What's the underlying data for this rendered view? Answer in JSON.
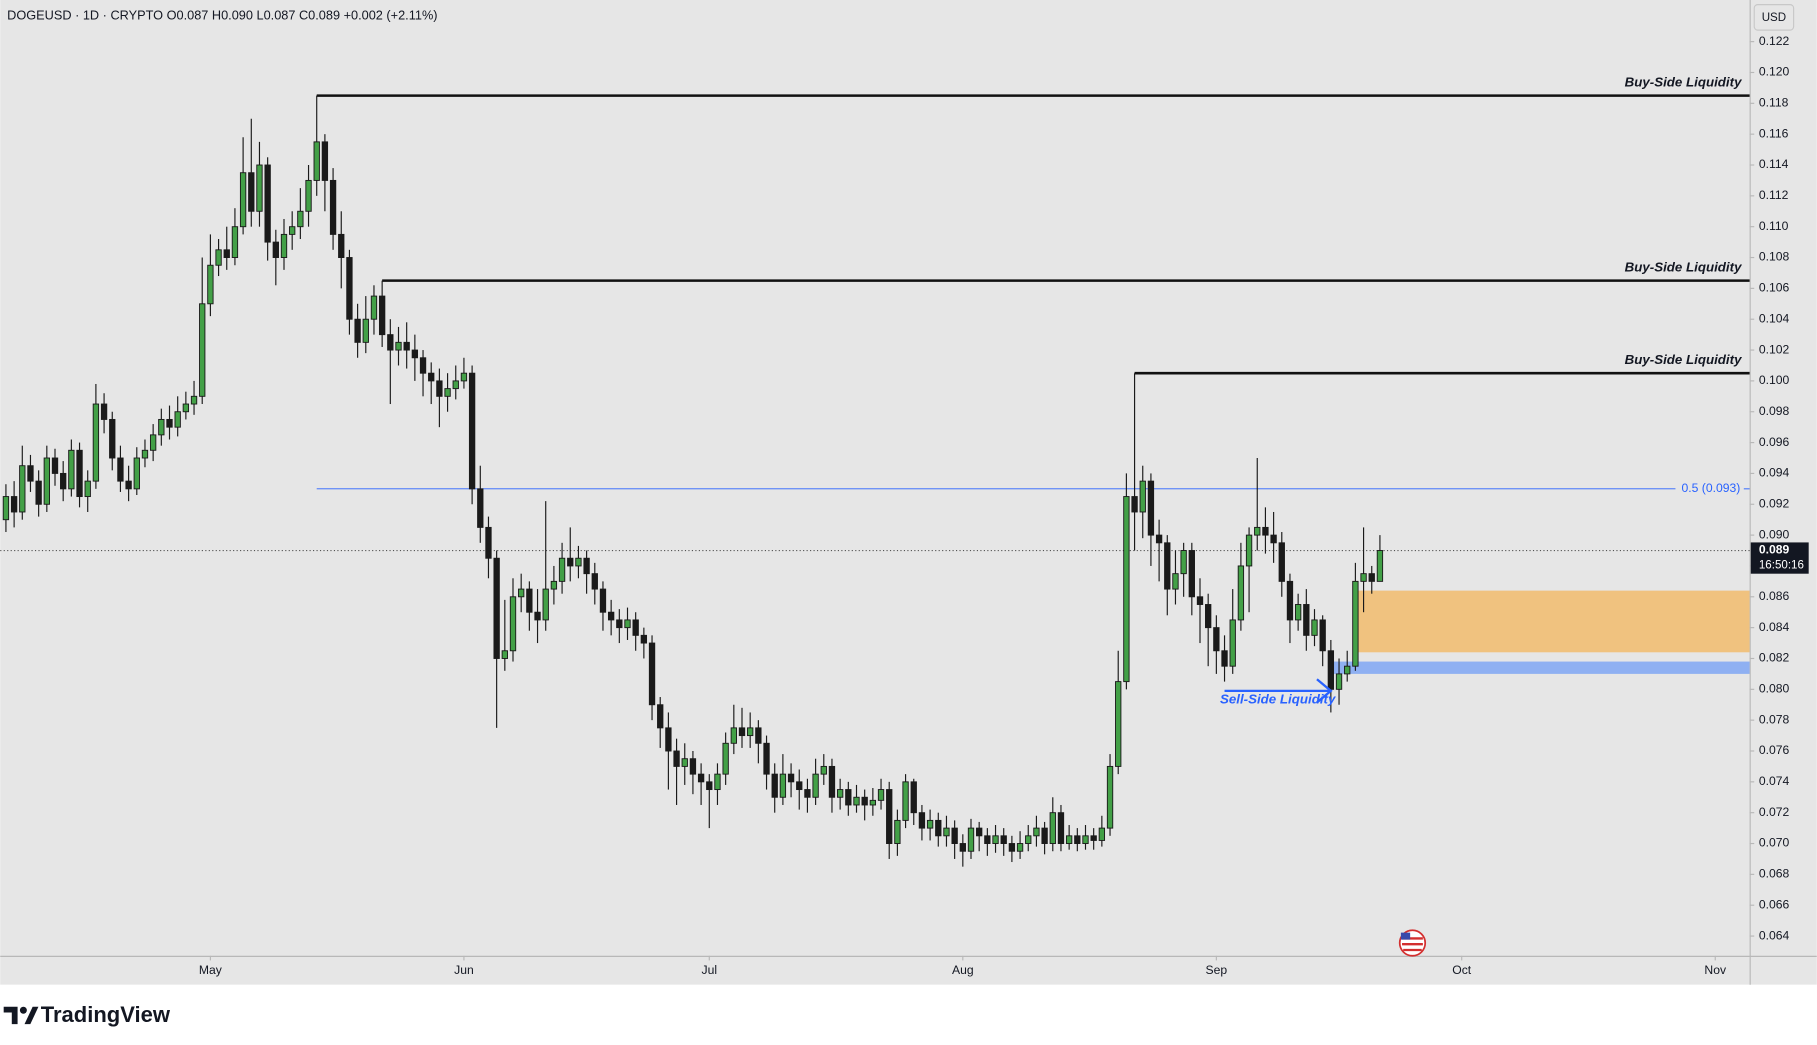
{
  "chart_data": {
    "type": "candlestick",
    "header": "DOGEUSD · 1D · CRYPTO  O0.087  H0.090  L0.087  C0.089  +0.002 (+2.11%)",
    "currency": "USD",
    "footer": "TradingView",
    "up_color": "#43a047",
    "down_color": "#1a1a1a",
    "wick_color": "#1a1a1a",
    "xlim": [
      -0.7,
      213.2
    ],
    "xticks": [
      {
        "value": 25,
        "label": "May"
      },
      {
        "value": 56,
        "label": "Jun"
      },
      {
        "value": 86,
        "label": "Jul"
      },
      {
        "value": 117,
        "label": "Aug"
      },
      {
        "value": 148,
        "label": "Sep"
      },
      {
        "value": 178,
        "label": "Oct"
      },
      {
        "value": 209,
        "label": "Nov"
      }
    ],
    "ylim": [
      0.06272,
      0.1247
    ],
    "yticks": [
      0.064,
      0.066,
      0.068,
      {
        "value": 0.07,
        "label": "0.070"
      },
      0.072,
      0.074,
      0.076,
      0.078,
      {
        "value": 0.08,
        "label": "0.080"
      },
      0.082,
      0.084,
      0.086,
      0.088,
      {
        "value": 0.09,
        "label": "0.090"
      },
      0.092,
      0.094,
      0.096,
      0.098,
      {
        "value": 0.1,
        "label": "0.100"
      },
      0.102,
      0.104,
      0.106,
      0.108,
      {
        "value": 0.11,
        "label": "0.110"
      },
      0.112,
      0.114,
      0.116,
      0.118,
      {
        "value": 0.12,
        "label": "0.120"
      },
      0.122
    ],
    "grid": false,
    "last_price": 0.089,
    "countdown": "16:50:16",
    "levels": [
      {
        "label": "Buy-Side Liquidity",
        "value": 0.1185,
        "from": 38,
        "color": "#111111",
        "style": "solid"
      },
      {
        "label": "Buy-Side Liquidity",
        "value": 0.1065,
        "from": 46,
        "color": "#111111",
        "style": "solid"
      },
      {
        "label": "Buy-Side Liquidity",
        "value": 0.1005,
        "from": 138,
        "color": "#111111",
        "style": "solid"
      },
      {
        "label": "0.5 (0.093)",
        "value": 0.093,
        "from": 38,
        "color": "#2962ff",
        "style": "thin"
      }
    ],
    "zones": [
      {
        "range": [
          0.0824,
          0.0864
        ],
        "from": 165,
        "color": "#f0c27f"
      },
      {
        "range": [
          0.081,
          0.0818
        ],
        "from": 162,
        "color": "#8fb0f2"
      }
    ],
    "arrow": {
      "label": "Sell-Side Liquidity",
      "value": 0.0799,
      "from": 149,
      "to": 162,
      "color": "#2962ff"
    },
    "ohlc": [
      [
        0.091,
        0.0933,
        0.0902,
        0.0925
      ],
      [
        0.0925,
        0.0935,
        0.0905,
        0.0915
      ],
      [
        0.0915,
        0.0958,
        0.091,
        0.0945
      ],
      [
        0.0945,
        0.0952,
        0.0928,
        0.0935
      ],
      [
        0.0935,
        0.0942,
        0.0912,
        0.092
      ],
      [
        0.092,
        0.0958,
        0.0915,
        0.095
      ],
      [
        0.095,
        0.0956,
        0.0932,
        0.094
      ],
      [
        0.094,
        0.0948,
        0.0922,
        0.093
      ],
      [
        0.093,
        0.0962,
        0.0925,
        0.0955
      ],
      [
        0.0955,
        0.096,
        0.0918,
        0.0925
      ],
      [
        0.0925,
        0.0942,
        0.0915,
        0.0935
      ],
      [
        0.0935,
        0.0998,
        0.093,
        0.0985
      ],
      [
        0.0985,
        0.0992,
        0.0966,
        0.0975
      ],
      [
        0.0975,
        0.098,
        0.0942,
        0.095
      ],
      [
        0.095,
        0.0958,
        0.0928,
        0.0935
      ],
      [
        0.0935,
        0.0945,
        0.0922,
        0.093
      ],
      [
        0.093,
        0.0957,
        0.0926,
        0.095
      ],
      [
        0.095,
        0.0962,
        0.0944,
        0.0955
      ],
      [
        0.0955,
        0.0972,
        0.0948,
        0.0965
      ],
      [
        0.0965,
        0.0982,
        0.0958,
        0.0975
      ],
      [
        0.0975,
        0.0984,
        0.0962,
        0.097
      ],
      [
        0.097,
        0.099,
        0.0964,
        0.098
      ],
      [
        0.098,
        0.0993,
        0.0975,
        0.0985
      ],
      [
        0.0985,
        0.1,
        0.0978,
        0.099
      ],
      [
        0.099,
        0.108,
        0.0985,
        0.105
      ],
      [
        0.105,
        0.1095,
        0.1042,
        0.1075
      ],
      [
        0.1075,
        0.1092,
        0.1068,
        0.1085
      ],
      [
        0.1085,
        0.11,
        0.1072,
        0.108
      ],
      [
        0.108,
        0.1112,
        0.1075,
        0.11
      ],
      [
        0.11,
        0.1158,
        0.1095,
        0.1135
      ],
      [
        0.1135,
        0.117,
        0.11,
        0.111
      ],
      [
        0.111,
        0.1155,
        0.11,
        0.114
      ],
      [
        0.114,
        0.1145,
        0.1078,
        0.109
      ],
      [
        0.109,
        0.1098,
        0.1062,
        0.108
      ],
      [
        0.108,
        0.1105,
        0.1072,
        0.1095
      ],
      [
        0.1095,
        0.111,
        0.1085,
        0.11
      ],
      [
        0.11,
        0.1125,
        0.1092,
        0.111
      ],
      [
        0.111,
        0.114,
        0.11,
        0.113
      ],
      [
        0.113,
        0.1185,
        0.112,
        0.1155
      ],
      [
        0.1155,
        0.116,
        0.111,
        0.113
      ],
      [
        0.113,
        0.1138,
        0.1085,
        0.1095
      ],
      [
        0.1095,
        0.111,
        0.106,
        0.108
      ],
      [
        0.108,
        0.1085,
        0.103,
        0.104
      ],
      [
        0.104,
        0.105,
        0.1015,
        0.1025
      ],
      [
        0.1025,
        0.1055,
        0.1018,
        0.104
      ],
      [
        0.104,
        0.1062,
        0.103,
        0.1055
      ],
      [
        0.1055,
        0.1065,
        0.1022,
        0.103
      ],
      [
        0.103,
        0.104,
        0.0985,
        0.102
      ],
      [
        0.102,
        0.1035,
        0.101,
        0.1025
      ],
      [
        0.1025,
        0.1038,
        0.1008,
        0.102
      ],
      [
        0.102,
        0.103,
        0.1,
        0.1015
      ],
      [
        0.1015,
        0.102,
        0.099,
        0.1005
      ],
      [
        0.1005,
        0.1012,
        0.0985,
        0.1
      ],
      [
        0.1,
        0.1008,
        0.097,
        0.099
      ],
      [
        0.099,
        0.1005,
        0.098,
        0.0995
      ],
      [
        0.0995,
        0.101,
        0.0988,
        0.1
      ],
      [
        0.1,
        0.1015,
        0.0995,
        0.1005
      ],
      [
        0.1005,
        0.101,
        0.092,
        0.093
      ],
      [
        0.093,
        0.0945,
        0.0895,
        0.0905
      ],
      [
        0.0905,
        0.0912,
        0.0872,
        0.0885
      ],
      [
        0.0885,
        0.089,
        0.0775,
        0.082
      ],
      [
        0.082,
        0.0858,
        0.0812,
        0.0825
      ],
      [
        0.0825,
        0.0872,
        0.0818,
        0.086
      ],
      [
        0.086,
        0.0875,
        0.085,
        0.0865
      ],
      [
        0.0865,
        0.087,
        0.0838,
        0.085
      ],
      [
        0.085,
        0.0865,
        0.083,
        0.0845
      ],
      [
        0.0845,
        0.0922,
        0.0838,
        0.0865
      ],
      [
        0.0865,
        0.088,
        0.0855,
        0.087
      ],
      [
        0.087,
        0.0895,
        0.0862,
        0.0885
      ],
      [
        0.0885,
        0.0905,
        0.087,
        0.088
      ],
      [
        0.088,
        0.0893,
        0.0872,
        0.0885
      ],
      [
        0.0885,
        0.089,
        0.0862,
        0.0875
      ],
      [
        0.0875,
        0.0882,
        0.0855,
        0.0865
      ],
      [
        0.0865,
        0.087,
        0.0838,
        0.085
      ],
      [
        0.085,
        0.0858,
        0.0835,
        0.0845
      ],
      [
        0.0845,
        0.0852,
        0.083,
        0.084
      ],
      [
        0.084,
        0.0853,
        0.0832,
        0.0845
      ],
      [
        0.0845,
        0.085,
        0.0825,
        0.0835
      ],
      [
        0.0835,
        0.084,
        0.082,
        0.083
      ],
      [
        0.083,
        0.0835,
        0.078,
        0.079
      ],
      [
        0.079,
        0.0795,
        0.0762,
        0.0775
      ],
      [
        0.0775,
        0.0785,
        0.0735,
        0.076
      ],
      [
        0.076,
        0.0768,
        0.0725,
        0.075
      ],
      [
        0.075,
        0.0765,
        0.0738,
        0.0755
      ],
      [
        0.0755,
        0.076,
        0.0732,
        0.0745
      ],
      [
        0.0745,
        0.0752,
        0.0725,
        0.074
      ],
      [
        0.074,
        0.0745,
        0.071,
        0.0735
      ],
      [
        0.0735,
        0.0752,
        0.0725,
        0.0745
      ],
      [
        0.0745,
        0.0772,
        0.0738,
        0.0765
      ],
      [
        0.0765,
        0.079,
        0.0758,
        0.0775
      ],
      [
        0.0775,
        0.0788,
        0.0762,
        0.077
      ],
      [
        0.077,
        0.0785,
        0.0762,
        0.0775
      ],
      [
        0.0775,
        0.078,
        0.0752,
        0.0765
      ],
      [
        0.0765,
        0.077,
        0.0735,
        0.0745
      ],
      [
        0.0745,
        0.0752,
        0.072,
        0.073
      ],
      [
        0.073,
        0.0758,
        0.0725,
        0.0745
      ],
      [
        0.0745,
        0.0752,
        0.073,
        0.074
      ],
      [
        0.074,
        0.0748,
        0.0722,
        0.0735
      ],
      [
        0.0735,
        0.0742,
        0.072,
        0.073
      ],
      [
        0.073,
        0.0755,
        0.0725,
        0.0745
      ],
      [
        0.0745,
        0.0758,
        0.0738,
        0.075
      ],
      [
        0.075,
        0.0755,
        0.072,
        0.073
      ],
      [
        0.073,
        0.0742,
        0.0722,
        0.0735
      ],
      [
        0.0735,
        0.074,
        0.0718,
        0.0725
      ],
      [
        0.0725,
        0.0738,
        0.072,
        0.073
      ],
      [
        0.073,
        0.0735,
        0.0715,
        0.0725
      ],
      [
        0.0725,
        0.0736,
        0.0718,
        0.0728
      ],
      [
        0.0728,
        0.0742,
        0.0722,
        0.0735
      ],
      [
        0.0735,
        0.074,
        0.069,
        0.07
      ],
      [
        0.07,
        0.0722,
        0.0692,
        0.0715
      ],
      [
        0.0715,
        0.0745,
        0.071,
        0.074
      ],
      [
        0.074,
        0.0742,
        0.0712,
        0.072
      ],
      [
        0.072,
        0.0725,
        0.0702,
        0.071
      ],
      [
        0.071,
        0.0722,
        0.0702,
        0.0715
      ],
      [
        0.0715,
        0.072,
        0.0698,
        0.0705
      ],
      [
        0.0705,
        0.0718,
        0.0698,
        0.071
      ],
      [
        0.071,
        0.0715,
        0.069,
        0.07
      ],
      [
        0.07,
        0.0706,
        0.0685,
        0.0695
      ],
      [
        0.0695,
        0.0716,
        0.069,
        0.071
      ],
      [
        0.071,
        0.0714,
        0.0695,
        0.0705
      ],
      [
        0.0705,
        0.071,
        0.0692,
        0.07
      ],
      [
        0.07,
        0.0712,
        0.0694,
        0.0705
      ],
      [
        0.0705,
        0.071,
        0.0692,
        0.07
      ],
      [
        0.07,
        0.0705,
        0.0688,
        0.0695
      ],
      [
        0.0695,
        0.0708,
        0.069,
        0.07
      ],
      [
        0.07,
        0.0712,
        0.0695,
        0.0705
      ],
      [
        0.0705,
        0.0718,
        0.0698,
        0.071
      ],
      [
        0.071,
        0.0714,
        0.0693,
        0.07
      ],
      [
        0.07,
        0.073,
        0.0695,
        0.072
      ],
      [
        0.072,
        0.0725,
        0.0695,
        0.07
      ],
      [
        0.07,
        0.0712,
        0.0696,
        0.0705
      ],
      [
        0.0705,
        0.071,
        0.0695,
        0.07
      ],
      [
        0.07,
        0.0712,
        0.0696,
        0.0705
      ],
      [
        0.0705,
        0.071,
        0.0696,
        0.0702
      ],
      [
        0.0702,
        0.0718,
        0.0698,
        0.071
      ],
      [
        0.071,
        0.0758,
        0.0705,
        0.075
      ],
      [
        0.075,
        0.0825,
        0.0745,
        0.0805
      ],
      [
        0.0805,
        0.094,
        0.08,
        0.0925
      ],
      [
        0.0925,
        0.1005,
        0.089,
        0.0915
      ],
      [
        0.0915,
        0.0945,
        0.0898,
        0.0935
      ],
      [
        0.0935,
        0.094,
        0.088,
        0.09
      ],
      [
        0.09,
        0.091,
        0.087,
        0.0895
      ],
      [
        0.0895,
        0.09,
        0.0848,
        0.0865
      ],
      [
        0.0865,
        0.089,
        0.0855,
        0.0875
      ],
      [
        0.0875,
        0.0895,
        0.086,
        0.089
      ],
      [
        0.089,
        0.0895,
        0.0848,
        0.086
      ],
      [
        0.086,
        0.0872,
        0.083,
        0.0855
      ],
      [
        0.0855,
        0.0862,
        0.0815,
        0.084
      ],
      [
        0.084,
        0.0848,
        0.081,
        0.0825
      ],
      [
        0.0825,
        0.0835,
        0.0805,
        0.0815
      ],
      [
        0.0815,
        0.0865,
        0.081,
        0.0845
      ],
      [
        0.0845,
        0.0895,
        0.0838,
        0.088
      ],
      [
        0.088,
        0.0905,
        0.085,
        0.09
      ],
      [
        0.09,
        0.095,
        0.089,
        0.0905
      ],
      [
        0.0905,
        0.0918,
        0.0888,
        0.09
      ],
      [
        0.09,
        0.0915,
        0.0882,
        0.0895
      ],
      [
        0.0895,
        0.0902,
        0.086,
        0.087
      ],
      [
        0.087,
        0.0875,
        0.083,
        0.0845
      ],
      [
        0.0845,
        0.0862,
        0.0838,
        0.0855
      ],
      [
        0.0855,
        0.0865,
        0.0825,
        0.0835
      ],
      [
        0.0835,
        0.0852,
        0.0828,
        0.0845
      ],
      [
        0.0845,
        0.0848,
        0.0815,
        0.0825
      ],
      [
        0.0825,
        0.0832,
        0.0785,
        0.08
      ],
      [
        0.08,
        0.082,
        0.079,
        0.081
      ],
      [
        0.081,
        0.0825,
        0.0805,
        0.0815
      ],
      [
        0.0815,
        0.0882,
        0.0812,
        0.087
      ],
      [
        0.087,
        0.0905,
        0.085,
        0.0875
      ],
      [
        0.0875,
        0.088,
        0.0862,
        0.087
      ],
      [
        0.087,
        0.09,
        0.087,
        0.089
      ]
    ]
  }
}
